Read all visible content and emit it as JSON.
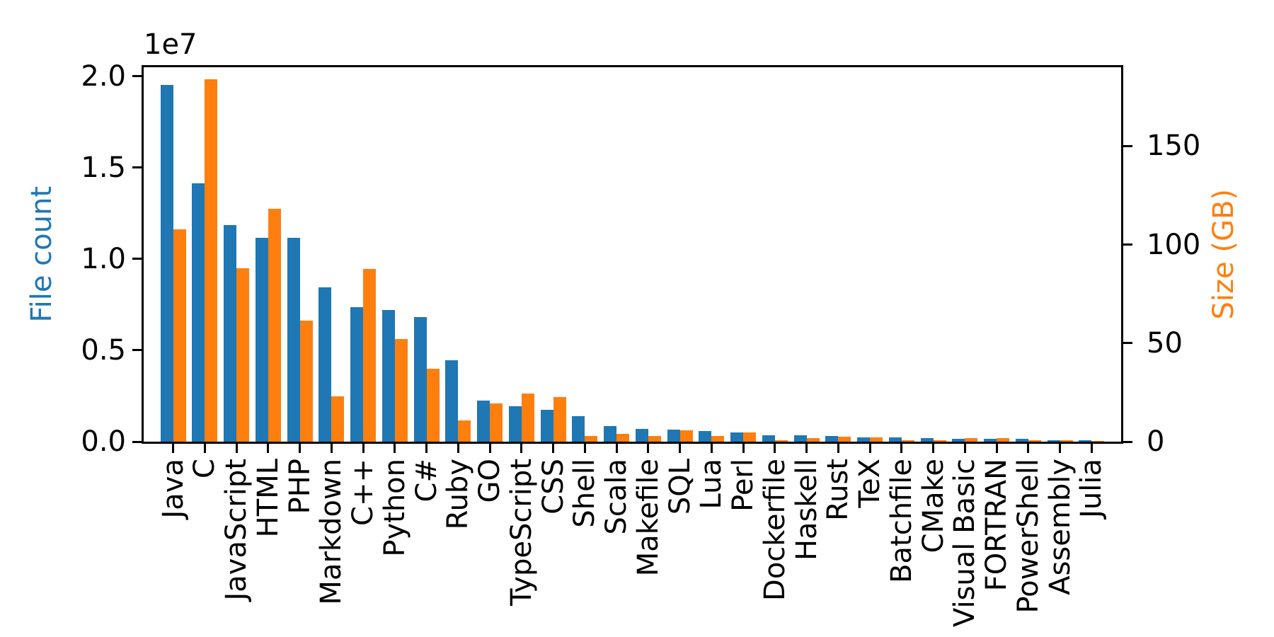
{
  "figure": {
    "background": "#ffffff",
    "axis_color": "#000000"
  },
  "chart_data": {
    "type": "bar",
    "title": "",
    "grid": false,
    "legend": "none",
    "categories": [
      "Java",
      "C",
      "JavaScript",
      "HTML",
      "PHP",
      "Markdown",
      "C++",
      "Python",
      "C#",
      "Ruby",
      "GO",
      "TypeScript",
      "CSS",
      "Shell",
      "Scala",
      "Makefile",
      "SQL",
      "Lua",
      "Perl",
      "Dockerfile",
      "Haskell",
      "Rust",
      "TeX",
      "Batchfile",
      "CMake",
      "Visual Basic",
      "FORTRAN",
      "PowerShell",
      "Assembly",
      "Julia"
    ],
    "series": [
      {
        "name": "File count",
        "axis": "left",
        "color": "#1f77b4",
        "values": [
          19548190,
          14143113,
          11839883,
          11178557,
          11177610,
          8464626,
          7380520,
          7226626,
          6811652,
          4473331,
          2265436,
          1940406,
          1734406,
          1385648,
          835755,
          679430,
          656671,
          578554,
          497949,
          366505,
          340623,
          322431,
          251015,
          236945,
          175282,
          155652,
          142038,
          136846,
          82905,
          58317
        ]
      },
      {
        "name": "Size (GB)",
        "axis": "right",
        "color": "#ff7f0e",
        "values": [
          107.7,
          183.83,
          87.82,
          118.12,
          61.41,
          23.09,
          87.73,
          52.03,
          36.83,
          10.95,
          19.28,
          24.59,
          22.67,
          3.01,
          3.87,
          2.92,
          5.67,
          2.81,
          4.7,
          0.71,
          1.85,
          2.68,
          2.15,
          0.7,
          0.54,
          1.91,
          1.62,
          0.69,
          0.78,
          0.29
        ]
      }
    ],
    "left_axis": {
      "label": "File count",
      "label_color": "#1f77b4",
      "offset_text": "1e7",
      "tick_labels": [
        "0.0",
        "0.5",
        "1.0",
        "1.5",
        "2.0"
      ],
      "tick_values": [
        0,
        5000000,
        10000000,
        15000000,
        20000000
      ],
      "max": 20500000
    },
    "right_axis": {
      "label": "Size (GB)",
      "label_color": "#ff7f0e",
      "tick_labels": [
        "0",
        "50",
        "100",
        "150"
      ],
      "tick_values": [
        0,
        50,
        100,
        150
      ],
      "max": 190
    }
  }
}
